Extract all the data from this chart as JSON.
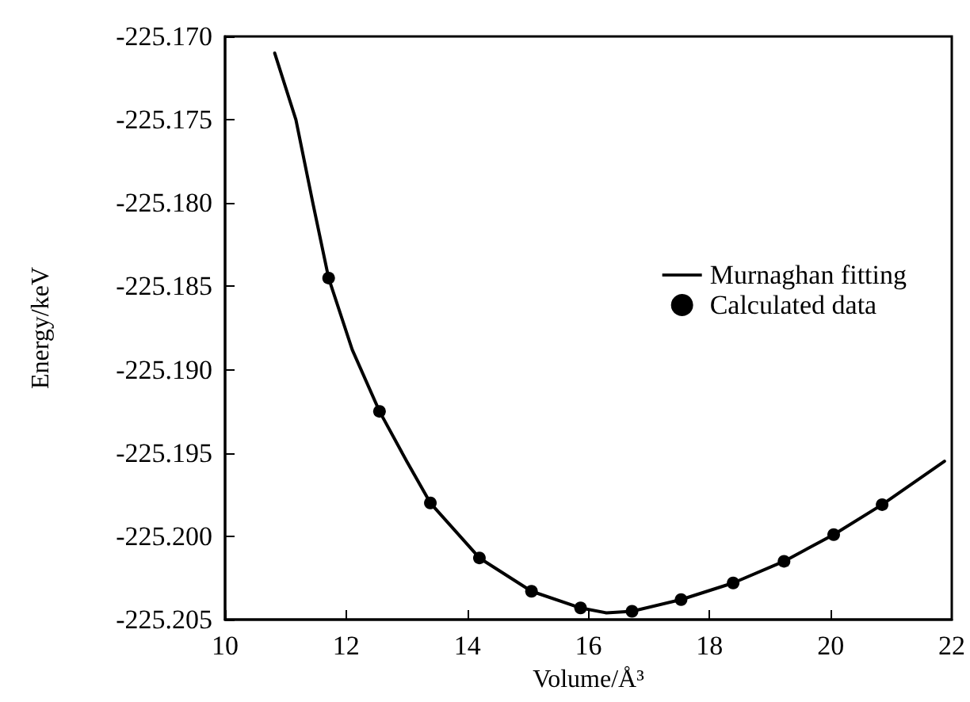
{
  "chart_data": {
    "type": "scatter",
    "xlabel": "Volume/Å³",
    "ylabel": "Energy/keV",
    "xlim": [
      10,
      22
    ],
    "xticks": [
      10,
      12,
      14,
      16,
      18,
      20,
      22
    ],
    "ylim": [
      -225.205,
      -225.17
    ],
    "yticks": [
      {
        "value": -225.205,
        "label": "-225.205"
      },
      {
        "value": -225.2,
        "label": "-225.200"
      },
      {
        "value": -225.195,
        "label": "-225.195"
      },
      {
        "value": -225.19,
        "label": "-225.190"
      },
      {
        "value": -225.185,
        "label": "-225.185"
      },
      {
        "value": -225.18,
        "label": "-225.180"
      },
      {
        "value": -225.175,
        "label": "-225.175"
      },
      {
        "value": -225.17,
        "label": "-225.170"
      }
    ],
    "grid": false,
    "legend": "right",
    "marker": "circle",
    "series": [
      {
        "name": "Murnaghan fitting",
        "type": "line",
        "color": "#000000",
        "marker": "none",
        "line_style": "solid",
        "x": [
          10.82,
          11.17,
          11.45,
          11.71,
          12.1,
          12.55,
          13.0,
          13.39,
          14.2,
          15.06,
          15.87,
          16.3,
          16.72,
          17.53,
          18.39,
          19.23,
          20.05,
          20.85,
          21.88
        ],
        "values": [
          -225.171,
          -225.175,
          -225.18,
          -225.1845,
          -225.1888,
          -225.1925,
          -225.1955,
          -225.198,
          -225.2013,
          -225.2033,
          -225.2043,
          -225.2046,
          -225.2045,
          -225.2038,
          -225.2028,
          -225.2015,
          -225.1999,
          -225.1981,
          -225.1955
        ]
      },
      {
        "name": "Calculated data",
        "color": "#000000",
        "x": [
          11.71,
          12.55,
          13.39,
          14.2,
          15.06,
          15.87,
          16.72,
          17.53,
          18.39,
          19.23,
          20.05,
          20.85
        ],
        "values": [
          -225.1845,
          -225.1925,
          -225.198,
          -225.2013,
          -225.2033,
          -225.2043,
          -225.2045,
          -225.2038,
          -225.2028,
          -225.2015,
          -225.1999,
          -225.1981
        ]
      }
    ]
  }
}
